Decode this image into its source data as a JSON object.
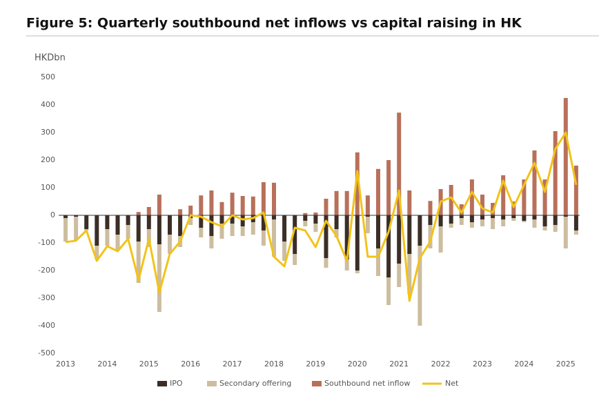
{
  "chart_data": {
    "type": "bar",
    "stacked": true,
    "title": "Figure 5: Quarterly southbound net inflows vs capital raising in HK",
    "y_axis_label": "HKDbn",
    "categories": [
      "2013",
      null,
      null,
      null,
      "2014",
      null,
      null,
      null,
      "2015",
      null,
      null,
      null,
      "2016",
      null,
      null,
      null,
      "2017",
      null,
      null,
      null,
      "2018",
      null,
      null,
      null,
      "2019",
      null,
      null,
      null,
      "2020",
      null,
      null,
      null,
      "2021",
      null,
      null,
      null,
      "2022",
      null,
      null,
      null,
      "2023",
      null,
      null,
      null,
      "2024",
      null,
      null,
      null,
      "2025",
      null
    ],
    "series": [
      {
        "name": "IPO",
        "color": "#3b2e26",
        "values": [
          -10,
          -5,
          -50,
          -110,
          -50,
          -70,
          -35,
          -95,
          -50,
          -105,
          -70,
          -75,
          -10,
          -45,
          -75,
          -30,
          -30,
          -40,
          -25,
          -55,
          -15,
          -95,
          -140,
          -20,
          -30,
          -155,
          -50,
          -160,
          -200,
          -5,
          -120,
          -225,
          -175,
          -140,
          -110,
          -35,
          -40,
          -30,
          -10,
          -25,
          -15,
          -10,
          -15,
          -10,
          -20,
          -15,
          -40,
          -35,
          -5,
          -55
        ]
      },
      {
        "name": "Secondary offering",
        "color": "#cdbd9f",
        "values": [
          -85,
          -85,
          -5,
          -50,
          -60,
          -55,
          -50,
          -150,
          -65,
          -245,
          -70,
          -40,
          -25,
          -35,
          -45,
          -55,
          -45,
          -35,
          -45,
          -55,
          -135,
          -70,
          -40,
          -20,
          -30,
          -35,
          -30,
          -40,
          -10,
          -60,
          -100,
          -100,
          -85,
          -145,
          -290,
          -85,
          -95,
          -15,
          -25,
          -20,
          -25,
          -40,
          -25,
          -10,
          -5,
          -30,
          -15,
          -25,
          -115,
          -15
        ]
      },
      {
        "name": "Southbound net inflow",
        "color": "#b8705a",
        "values": [
          0,
          0,
          0,
          0,
          0,
          0,
          0,
          12,
          30,
          75,
          0,
          22,
          35,
          72,
          90,
          48,
          82,
          70,
          68,
          120,
          118,
          0,
          0,
          8,
          10,
          60,
          88,
          88,
          228,
          72,
          168,
          200,
          372,
          90,
          0,
          52,
          95,
          110,
          40,
          130,
          75,
          45,
          145,
          50,
          130,
          235,
          130,
          305,
          425,
          180
        ]
      },
      {
        "name": "Net",
        "type": "line",
        "color": "#f2c318",
        "values": [
          -97,
          -92,
          -55,
          -165,
          -112,
          -130,
          -85,
          -235,
          -85,
          -280,
          -140,
          -95,
          0,
          -5,
          -25,
          -40,
          0,
          -15,
          -10,
          10,
          -150,
          -185,
          -45,
          -55,
          -115,
          -20,
          -75,
          -165,
          160,
          -150,
          -150,
          -60,
          90,
          -310,
          -155,
          -95,
          50,
          65,
          10,
          85,
          25,
          10,
          125,
          30,
          110,
          190,
          85,
          240,
          300,
          110
        ]
      }
    ],
    "ylim": [
      -500,
      500
    ],
    "yticks": [
      -500,
      -400,
      -300,
      -200,
      -100,
      0,
      100,
      200,
      300,
      400,
      500
    ],
    "grid": false
  }
}
